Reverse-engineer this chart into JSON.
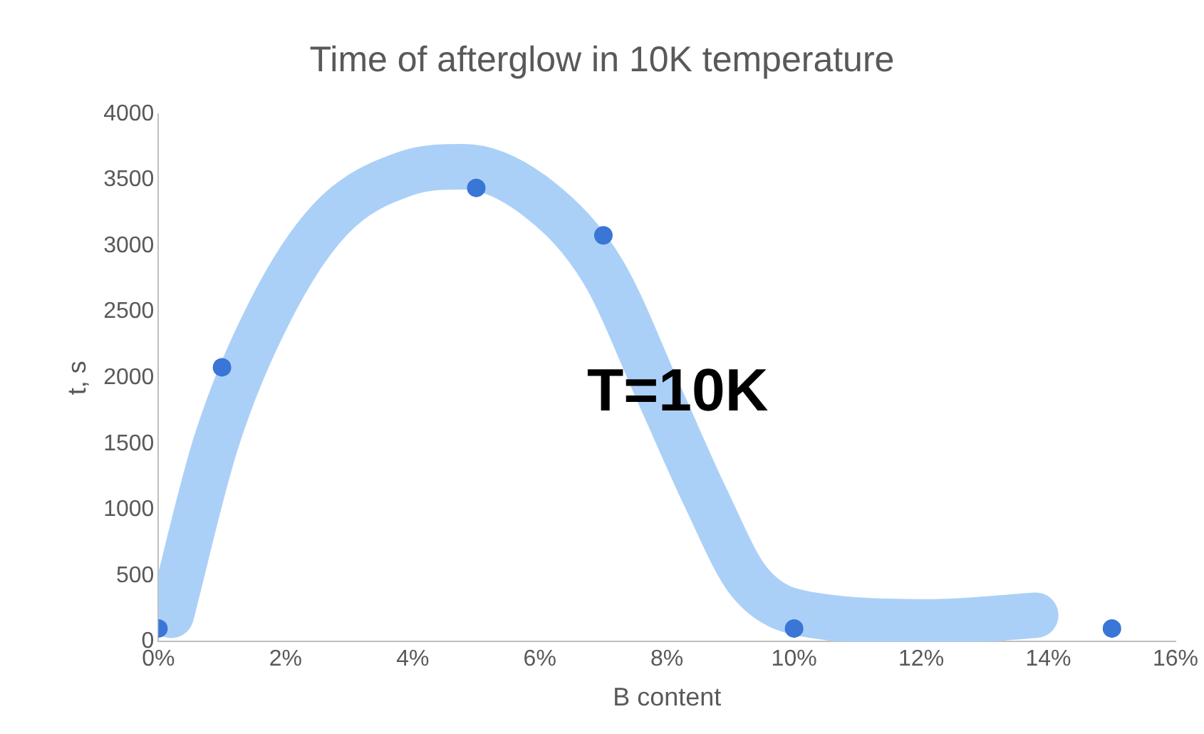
{
  "chart_data": {
    "type": "scatter",
    "title": "Time of afterglow in 10K temperature",
    "xlabel": "B content",
    "ylabel": "t, s",
    "x": [
      0,
      1,
      5,
      7,
      10,
      15
    ],
    "series": [
      {
        "type": "scatter",
        "color": "#3a76d6",
        "values": [
          100,
          2080,
          3440,
          3080,
          100,
          100
        ]
      },
      {
        "type": "line",
        "color": "#abd0f8",
        "marker": "none",
        "x": [
          0.2,
          0.9,
          1.75,
          2.7,
          3.9,
          4.8,
          6.0,
          7.0,
          7.9,
          8.6,
          9.3,
          10.3,
          12.2,
          13.8
        ],
        "values": [
          200,
          1500,
          2500,
          3200,
          3550,
          3600,
          3350,
          2800,
          1850,
          1100,
          450,
          200,
          150,
          200
        ]
      }
    ],
    "xlim": [
      0,
      16
    ],
    "xticks": [
      {
        "value": 0,
        "label": "0%"
      },
      {
        "value": 2,
        "label": "2%"
      },
      {
        "value": 4,
        "label": "4%"
      },
      {
        "value": 6,
        "label": "6%"
      },
      {
        "value": 8,
        "label": "8%"
      },
      {
        "value": 10,
        "label": "10%"
      },
      {
        "value": 12,
        "label": "12%"
      },
      {
        "value": 14,
        "label": "14%"
      },
      {
        "value": 16,
        "label": "16%"
      }
    ],
    "ylim": [
      0,
      4000
    ],
    "yticks": [
      0,
      500,
      1000,
      1500,
      2000,
      2500,
      3000,
      3500,
      4000
    ],
    "grid": false,
    "legend": false,
    "marker": "circle",
    "line_style": "solid",
    "annotations": [
      "T=10K"
    ]
  }
}
